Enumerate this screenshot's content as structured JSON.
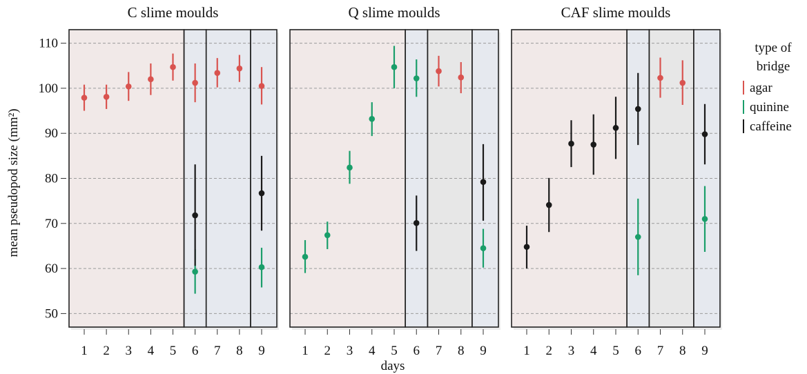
{
  "chart_data": {
    "type": "scatter",
    "title": "",
    "xlabel": "days",
    "ylabel": "mean pseudopod size (mm²)",
    "ylim": [
      47,
      113
    ],
    "yticks": [
      50,
      60,
      70,
      80,
      90,
      100,
      110
    ],
    "xticks": [
      1,
      2,
      3,
      4,
      5,
      6,
      7,
      8,
      9
    ],
    "grid": "horizontal dashed",
    "legend": {
      "title": "type of bridge",
      "placement": "right",
      "entries": [
        {
          "name": "agar",
          "color": "#d9534f"
        },
        {
          "name": "quinine",
          "color": "#1a9e6a"
        },
        {
          "name": "caffeine",
          "color": "#1a1a1a"
        }
      ]
    },
    "background_colors": {
      "pink": "#f1e9e8",
      "blue": "#e6e9ef",
      "gray": "#e7e7e7"
    },
    "panels": [
      {
        "title": "C slime moulds",
        "bands": [
          {
            "from": 1,
            "to": 5,
            "shade": "pink"
          },
          {
            "from": 6,
            "to": 6,
            "shade": "blue"
          },
          {
            "from": 7,
            "to": 8,
            "shade": "blue"
          },
          {
            "from": 9,
            "to": 9,
            "shade": "blue"
          }
        ],
        "series": [
          {
            "name": "agar",
            "points": [
              {
                "x": 1,
                "y": 97.9,
                "lo": 95.0,
                "hi": 100.8
              },
              {
                "x": 2,
                "y": 98.1,
                "lo": 95.4,
                "hi": 100.8
              },
              {
                "x": 3,
                "y": 100.4,
                "lo": 97.2,
                "hi": 103.6
              },
              {
                "x": 4,
                "y": 102.0,
                "lo": 98.5,
                "hi": 105.5
              },
              {
                "x": 5,
                "y": 104.7,
                "lo": 101.7,
                "hi": 107.7
              },
              {
                "x": 6,
                "y": 101.2,
                "lo": 96.9,
                "hi": 105.5
              },
              {
                "x": 7,
                "y": 103.4,
                "lo": 100.2,
                "hi": 106.7
              },
              {
                "x": 8,
                "y": 104.4,
                "lo": 101.4,
                "hi": 107.4
              },
              {
                "x": 9,
                "y": 100.5,
                "lo": 96.4,
                "hi": 104.7
              }
            ]
          },
          {
            "name": "quinine",
            "points": [
              {
                "x": 6,
                "y": 59.3,
                "lo": 54.4,
                "hi": 64.3
              },
              {
                "x": 9,
                "y": 60.3,
                "lo": 55.8,
                "hi": 64.6
              }
            ]
          },
          {
            "name": "caffeine",
            "points": [
              {
                "x": 6,
                "y": 71.8,
                "lo": 60.6,
                "hi": 83.1
              },
              {
                "x": 9,
                "y": 76.7,
                "lo": 68.4,
                "hi": 85.0
              }
            ]
          }
        ]
      },
      {
        "title": "Q slime moulds",
        "bands": [
          {
            "from": 1,
            "to": 5,
            "shade": "pink"
          },
          {
            "from": 6,
            "to": 6,
            "shade": "blue"
          },
          {
            "from": 7,
            "to": 8,
            "shade": "gray"
          },
          {
            "from": 9,
            "to": 9,
            "shade": "blue"
          }
        ],
        "series": [
          {
            "name": "agar",
            "points": [
              {
                "x": 7,
                "y": 103.8,
                "lo": 100.4,
                "hi": 107.2
              },
              {
                "x": 8,
                "y": 102.4,
                "lo": 98.9,
                "hi": 105.8
              }
            ]
          },
          {
            "name": "quinine",
            "points": [
              {
                "x": 1,
                "y": 62.6,
                "lo": 59.0,
                "hi": 66.3
              },
              {
                "x": 2,
                "y": 67.4,
                "lo": 64.3,
                "hi": 70.4
              },
              {
                "x": 3,
                "y": 82.4,
                "lo": 78.8,
                "hi": 86.1
              },
              {
                "x": 4,
                "y": 93.2,
                "lo": 89.4,
                "hi": 96.9
              },
              {
                "x": 5,
                "y": 104.7,
                "lo": 100.0,
                "hi": 109.4
              },
              {
                "x": 6,
                "y": 102.2,
                "lo": 98.1,
                "hi": 106.4
              }
            ]
          },
          {
            "name": "caffeine",
            "points": [
              {
                "x": 6,
                "y": 70.1,
                "lo": 63.9,
                "hi": 76.2
              },
              {
                "x": 9,
                "y": 79.2,
                "lo": 70.6,
                "hi": 87.6
              }
            ]
          },
          {
            "name": "quinine",
            "points": [
              {
                "x": 9,
                "y": 64.5,
                "lo": 60.2,
                "hi": 68.8
              }
            ]
          }
        ]
      },
      {
        "title": "CAF slime moulds",
        "bands": [
          {
            "from": 1,
            "to": 5,
            "shade": "pink"
          },
          {
            "from": 6,
            "to": 6,
            "shade": "blue"
          },
          {
            "from": 7,
            "to": 8,
            "shade": "gray"
          },
          {
            "from": 9,
            "to": 9,
            "shade": "blue"
          }
        ],
        "series": [
          {
            "name": "agar",
            "points": [
              {
                "x": 7,
                "y": 102.3,
                "lo": 97.9,
                "hi": 106.8
              },
              {
                "x": 8,
                "y": 101.2,
                "lo": 96.3,
                "hi": 106.2
              }
            ]
          },
          {
            "name": "quinine",
            "points": [
              {
                "x": 6,
                "y": 67.0,
                "lo": 58.5,
                "hi": 75.5
              },
              {
                "x": 9,
                "y": 71.0,
                "lo": 63.7,
                "hi": 78.3
              }
            ]
          },
          {
            "name": "caffeine",
            "points": [
              {
                "x": 1,
                "y": 64.8,
                "lo": 60.0,
                "hi": 69.5
              },
              {
                "x": 2,
                "y": 74.1,
                "lo": 68.1,
                "hi": 80.1
              },
              {
                "x": 3,
                "y": 87.7,
                "lo": 82.5,
                "hi": 92.9
              },
              {
                "x": 4,
                "y": 87.5,
                "lo": 80.8,
                "hi": 94.2
              },
              {
                "x": 5,
                "y": 91.2,
                "lo": 84.3,
                "hi": 98.1
              },
              {
                "x": 6,
                "y": 95.4,
                "lo": 87.4,
                "hi": 103.4
              },
              {
                "x": 9,
                "y": 89.8,
                "lo": 83.1,
                "hi": 96.5
              }
            ]
          }
        ]
      }
    ]
  }
}
